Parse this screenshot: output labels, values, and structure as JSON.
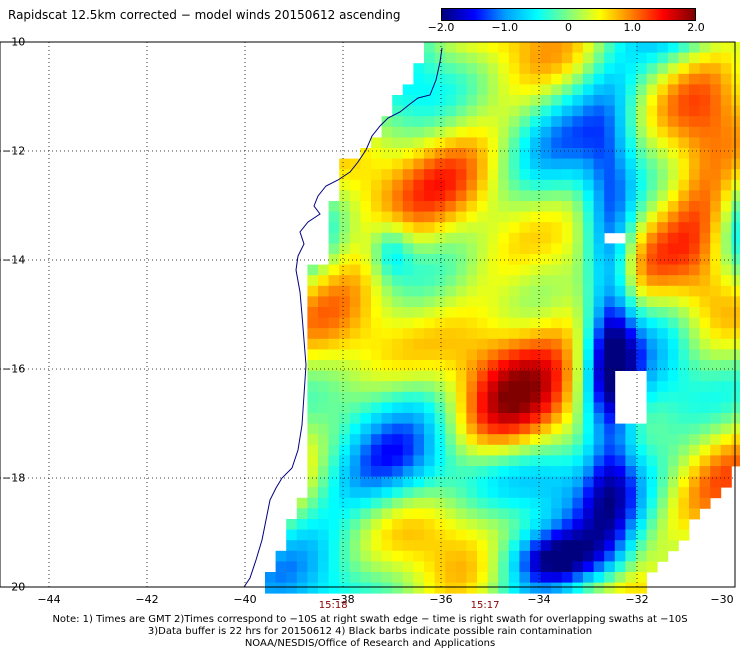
{
  "title": "Rapidscat 12.5km corrected − model winds 20150612 ascending",
  "colorbar": {
    "labels": [
      "−2.0",
      "−1.0",
      "0",
      "1.0",
      "2.0"
    ],
    "values": [
      -2.0,
      -1.0,
      0,
      1.0,
      2.0
    ],
    "min": -2.0,
    "max": 2.0,
    "stops": [
      "#00007f",
      "#0000ff",
      "#00a0ff",
      "#00ffff",
      "#80ff80",
      "#ffff00",
      "#ff8000",
      "#ff0000",
      "#800000"
    ]
  },
  "map": {
    "lon_range": [
      -45,
      -30
    ],
    "lat_range": [
      -20,
      -10
    ],
    "x_ticks": [
      {
        "value": -44,
        "label": "−44"
      },
      {
        "value": -42,
        "label": "−42"
      },
      {
        "value": -40,
        "label": "−40"
      },
      {
        "value": -38,
        "label": "−38"
      },
      {
        "value": -36,
        "label": "−36"
      },
      {
        "value": -34,
        "label": "−34"
      },
      {
        "value": -32,
        "label": "−32"
      },
      {
        "value": -30,
        "label": "−30"
      }
    ],
    "y_ticks": [
      {
        "value": -10,
        "label": "−10"
      },
      {
        "value": -12,
        "label": "−12"
      },
      {
        "value": -14,
        "label": "−14"
      },
      {
        "value": -16,
        "label": "−16"
      },
      {
        "value": -18,
        "label": "−18"
      },
      {
        "value": -20,
        "label": "−20"
      }
    ],
    "time_labels": [
      {
        "lon": -38.2,
        "text": "15:18"
      },
      {
        "lon": -35.1,
        "text": "15:17"
      }
    ],
    "colors": {
      "coastline": "#000080",
      "grid": "#000000",
      "missing": "#ffffff"
    }
  },
  "notes": [
    "Note: 1) Times are GMT 2)Times correspond to −10S at right swath edge − time is right swath for overlapping swaths at −10S",
    "3)Data buffer is 22 hrs for 20150612 4) Black barbs indicate possible rain contamination",
    "NOAA/NESDIS/Office of Research and Applications"
  ]
}
